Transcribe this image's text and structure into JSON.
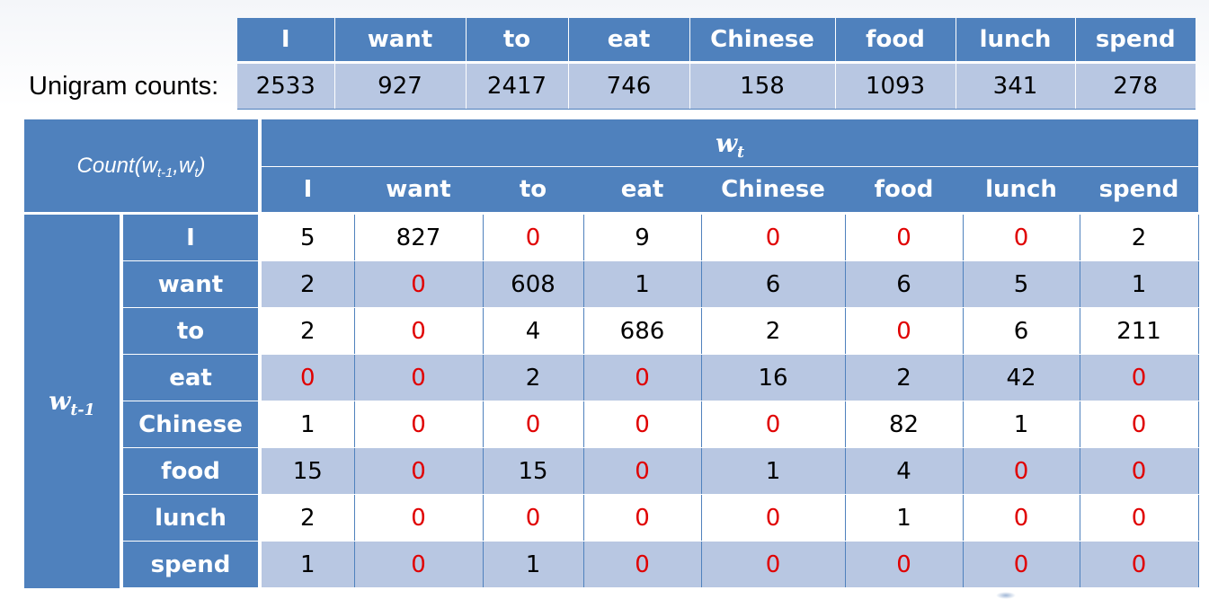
{
  "unigram": {
    "label": "Unigram counts:",
    "words": [
      "I",
      "want",
      "to",
      "eat",
      "Chinese",
      "food",
      "lunch",
      "spend"
    ],
    "counts": [
      "2533",
      "927",
      "2417",
      "746",
      "158",
      "1093",
      "341",
      "278"
    ]
  },
  "bigram": {
    "count_label": "Count(",
    "count_w": "w",
    "count_sub1": "t-1",
    "count_comma": ",",
    "count_w2": "w",
    "count_sub2": "t",
    "count_close": ")",
    "col_group_w": "w",
    "col_group_sub": "t",
    "row_group_w": "w",
    "row_group_sub": "t-1",
    "columns": [
      "I",
      "want",
      "to",
      "eat",
      "Chinese",
      "food",
      "lunch",
      "spend"
    ],
    "rows": [
      {
        "label": "I",
        "values": [
          "5",
          "827",
          "0",
          "9",
          "0",
          "0",
          "0",
          "2"
        ]
      },
      {
        "label": "want",
        "values": [
          "2",
          "0",
          "608",
          "1",
          "6",
          "6",
          "5",
          "1"
        ]
      },
      {
        "label": "to",
        "values": [
          "2",
          "0",
          "4",
          "686",
          "2",
          "0",
          "6",
          "211"
        ]
      },
      {
        "label": "eat",
        "values": [
          "0",
          "0",
          "2",
          "0",
          "16",
          "2",
          "42",
          "0"
        ]
      },
      {
        "label": "Chinese",
        "values": [
          "1",
          "0",
          "0",
          "0",
          "0",
          "82",
          "1",
          "0"
        ]
      },
      {
        "label": "food",
        "values": [
          "15",
          "0",
          "15",
          "0",
          "1",
          "4",
          "0",
          "0"
        ]
      },
      {
        "label": "lunch",
        "values": [
          "2",
          "0",
          "0",
          "0",
          "0",
          "1",
          "0",
          "0"
        ]
      },
      {
        "label": "spend",
        "values": [
          "1",
          "0",
          "1",
          "0",
          "0",
          "0",
          "0",
          "0"
        ]
      }
    ]
  },
  "colors": {
    "header_blue": "#4f81bd",
    "band_light": "#b8c7e2",
    "zero_red": "#e00000"
  }
}
